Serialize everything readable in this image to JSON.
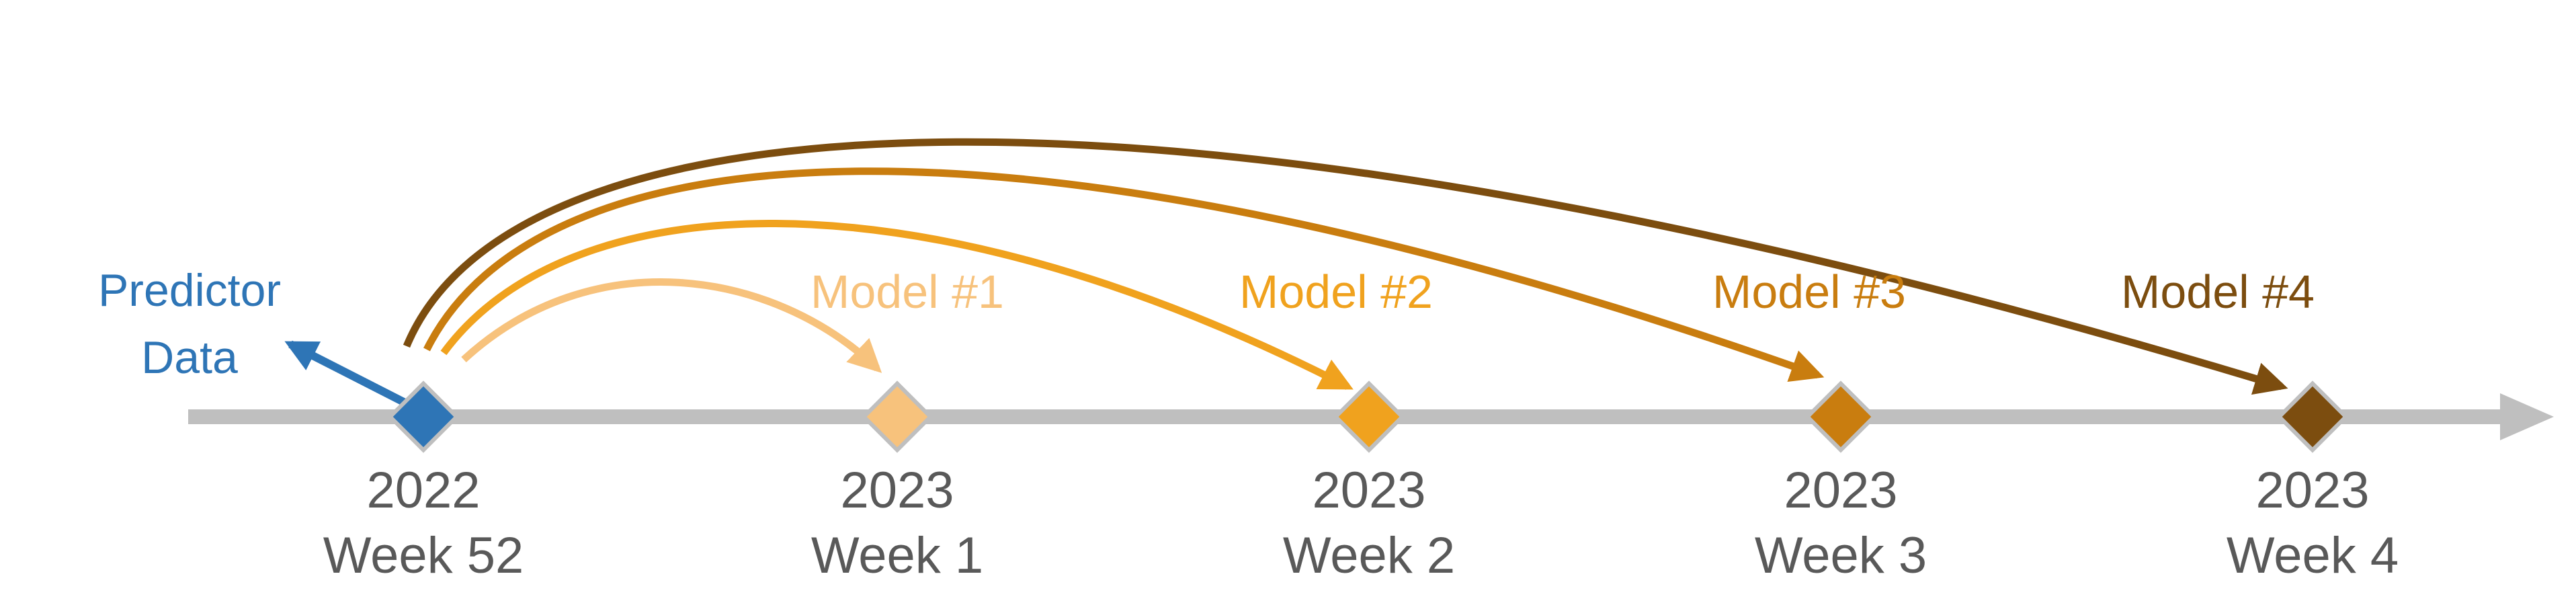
{
  "colors": {
    "axis": "#bfbfbf",
    "tick_text": "#595959",
    "predictor": "#2e75b6",
    "model_1": "#f7c27c",
    "model_2": "#f0a21e",
    "model_3": "#c97d0f",
    "model_4": "#7c4d0f"
  },
  "predictor": {
    "line1": "Predictor",
    "line2": "Data"
  },
  "timeline": {
    "ticks": [
      {
        "year": "2022",
        "week": "Week 52",
        "marker_color": "#2e75b6"
      },
      {
        "year": "2023",
        "week": "Week 1",
        "marker_color": "#f7c27c"
      },
      {
        "year": "2023",
        "week": "Week 2",
        "marker_color": "#f0a21e"
      },
      {
        "year": "2023",
        "week": "Week 3",
        "marker_color": "#c97d0f"
      },
      {
        "year": "2023",
        "week": "Week 4",
        "marker_color": "#7c4d0f"
      }
    ]
  },
  "models": [
    {
      "label": "Model #1",
      "target_week": "Week 1",
      "color": "#f7c27c"
    },
    {
      "label": "Model #2",
      "target_week": "Week 2",
      "color": "#f0a21e"
    },
    {
      "label": "Model #3",
      "target_week": "Week 3",
      "color": "#c97d0f"
    },
    {
      "label": "Model #4",
      "target_week": "Week 4",
      "color": "#7c4d0f"
    }
  ]
}
